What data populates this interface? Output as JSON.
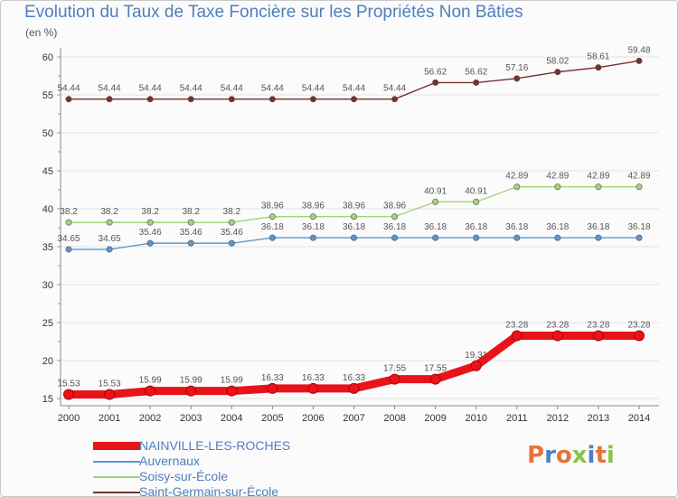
{
  "title": "Evolution du Taux de Taxe Foncière sur les Propriétés Non Bâties",
  "unit": "(en %)",
  "logo": {
    "text": "Proxiti",
    "colors": [
      "#e8733a",
      "#4f7fbf",
      "#e8733a",
      "#8bc34a",
      "#4f7fbf",
      "#e8733a",
      "#8bc34a"
    ]
  },
  "chart_data": {
    "type": "line",
    "title": "Evolution du Taux de Taxe Foncière sur les Propriétés Non Bâties",
    "ylabel": "(en %)",
    "xlabel": "",
    "ylim": [
      15,
      60
    ],
    "yticks": [
      15,
      20,
      25,
      30,
      35,
      40,
      45,
      50,
      55,
      60
    ],
    "categories": [
      "2000",
      "2001",
      "2002",
      "2003",
      "2004",
      "2005",
      "2006",
      "2007",
      "2008",
      "2009",
      "2010",
      "2011",
      "2012",
      "2013",
      "2014"
    ],
    "series": [
      {
        "name": "NAINVILLE-LES-ROCHES",
        "color": "#e8141b",
        "values": [
          15.53,
          15.53,
          15.99,
          15.99,
          15.99,
          16.33,
          16.33,
          16.33,
          17.55,
          17.55,
          19.31,
          23.28,
          23.28,
          23.28,
          23.28
        ],
        "labels": [
          "15.53",
          "15.53",
          "15.99",
          "15.99",
          "15.99",
          "16.33",
          "16.33",
          "16.33",
          "17.55",
          "17.55",
          "19.31",
          "23.28",
          "23.28",
          "23.28",
          "23.28"
        ]
      },
      {
        "name": "Auvernaux",
        "color": "#5d97cc",
        "values": [
          34.65,
          34.65,
          35.46,
          35.46,
          35.46,
          36.18,
          36.18,
          36.18,
          36.18,
          36.18,
          36.18,
          36.18,
          36.18,
          36.18,
          36.18
        ],
        "labels": [
          "34.65",
          "34.65",
          "35.46",
          "35.46",
          "35.46",
          "36.18",
          "36.18",
          "36.18",
          "36.18",
          "36.18",
          "36.18",
          "36.18",
          "36.18",
          "36.18",
          "36.18"
        ]
      },
      {
        "name": "Soisy-sur-École",
        "color": "#9fd67a",
        "values": [
          38.2,
          38.2,
          38.2,
          38.2,
          38.2,
          38.96,
          38.96,
          38.96,
          38.96,
          40.91,
          40.91,
          42.89,
          42.89,
          42.89,
          42.89
        ],
        "labels": [
          "38.2",
          "38.2",
          "38.2",
          "38.2",
          "38.2",
          "38.96",
          "38.96",
          "38.96",
          "38.96",
          "40.91",
          "40.91",
          "42.89",
          "42.89",
          "42.89",
          "42.89"
        ]
      },
      {
        "name": "Saint-Germain-sur-École",
        "color": "#7b2e2e",
        "values": [
          54.44,
          54.44,
          54.44,
          54.44,
          54.44,
          54.44,
          54.44,
          54.44,
          54.44,
          56.62,
          56.62,
          57.16,
          58.02,
          58.61,
          59.48
        ],
        "labels": [
          "54.44",
          "54.44",
          "54.44",
          "54.44",
          "54.44",
          "54.44",
          "54.44",
          "54.44",
          "54.44",
          "56.62",
          "56.62",
          "57.16",
          "58.02",
          "58.61",
          "59.48"
        ]
      }
    ],
    "legend": [
      "NAINVILLE-LES-ROCHES",
      "Auvernaux",
      "Soisy-sur-École",
      "Saint-Germain-sur-École"
    ],
    "legend_position": "bottom-left"
  }
}
